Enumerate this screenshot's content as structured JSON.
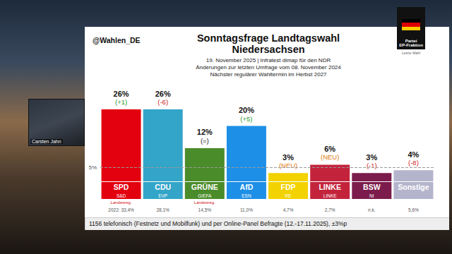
{
  "header": "@Wahlen_DE",
  "overlay_name": "Carsten Jahn",
  "logo": {
    "lines": [
      "Partei",
      "EP-Fraktion"
    ],
    "caption": "Letzte Wahl"
  },
  "chart_data": {
    "type": "bar",
    "title": "Sonntagsfrage Landtagswahl\nNiedersachsen",
    "subtitle": "19. November 2025 | Infratest dimap für den NDR\nÄnderungen zur letzten Umfrage vom 08. November 2024\nNächster regulärer Wahltermin im Herbst 2027",
    "categories": [
      "SPD",
      "CDU",
      "GRÜNE",
      "AfD",
      "FDP",
      "LINKE",
      "BSW",
      "Sonstige"
    ],
    "values": [
      26,
      26,
      12,
      20,
      3,
      6,
      3,
      4
    ],
    "value_labels": [
      "26%",
      "26%",
      "12%",
      "20%",
      "3%",
      "6%",
      "3%",
      "4%"
    ],
    "colors": [
      "#e3000f",
      "#32a5c8",
      "#4a8c2a",
      "#1e8fe6",
      "#f2d200",
      "#c3243c",
      "#7b1c4c",
      "#b4b4cc"
    ],
    "changes": [
      "(+1)",
      "(-6)",
      "(=)",
      "(+5)",
      "(NEU)",
      "(NEU)",
      "(-1)",
      "(-8)"
    ],
    "groups": [
      "S&D",
      "EVP",
      "G/EFA",
      "ESN",
      "RE",
      "LINKE",
      "NI",
      null
    ],
    "government": [
      "Landesreg.",
      null,
      "Landesreg.",
      null,
      null,
      null,
      null,
      null
    ],
    "previous_results": [
      "2022: 33,4%",
      "28,1%",
      "14,5%",
      "11,0%",
      "4,7%",
      "2,7%",
      "n.k.",
      "5,6%"
    ],
    "threshold": {
      "value": 5,
      "label": "5%"
    },
    "ylim": [
      0,
      26
    ],
    "grid": false,
    "tick_labels": "x",
    "data_labels": true,
    "note": "1156 telefonisch (Festnetz und Mobilfunk) und per Online-Panel Befragte (12.-17.11.2025), ±3%p"
  }
}
